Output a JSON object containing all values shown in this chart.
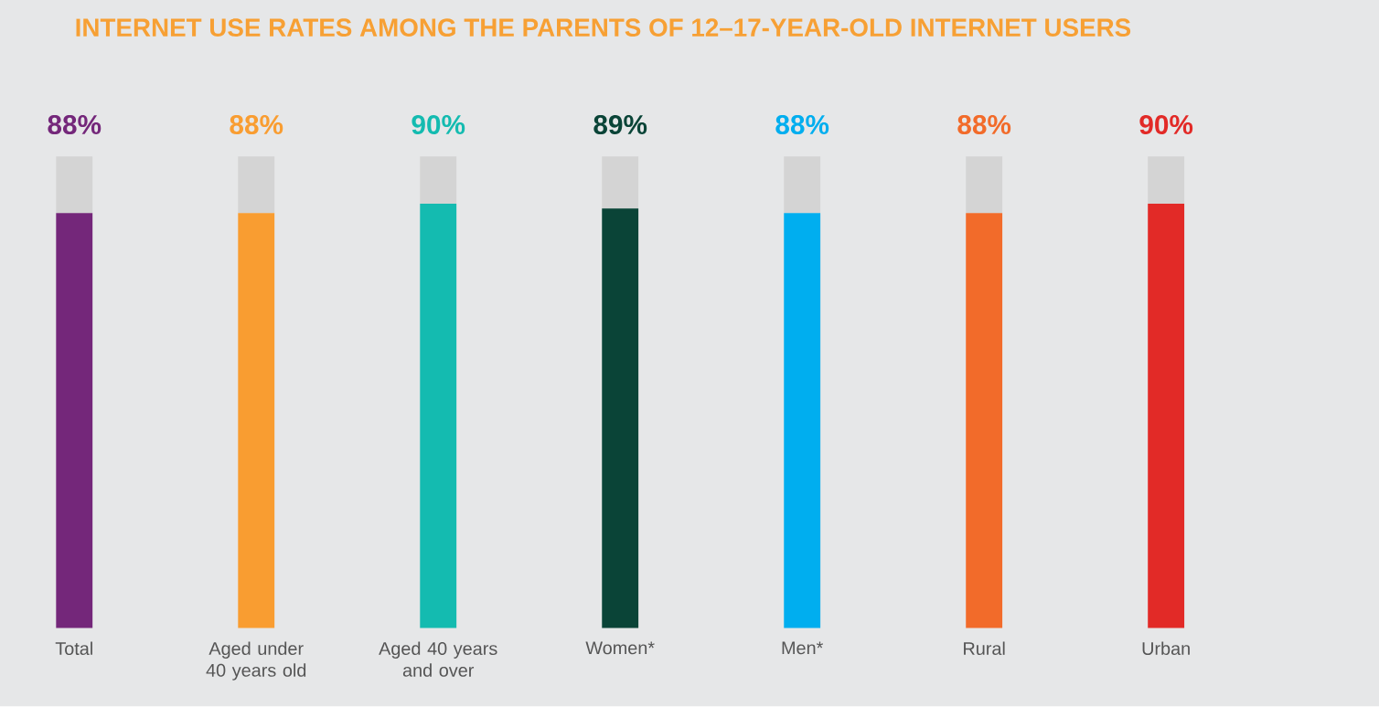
{
  "chart_data": {
    "type": "bar",
    "title": "INTERNET USE RATES AMONG THE PARENTS OF 12–17-YEAR-OLD INTERNET USERS",
    "categories": [
      "Total",
      "Aged under 40 years old",
      "Aged 40 years and over",
      "Women*",
      "Men*",
      "Rural",
      "Urban"
    ],
    "stacked": true,
    "tick_labels": "x",
    "series": [
      {
        "colors": [
          "#74277a",
          "#f99d31",
          "#14bbb0",
          "#0a4437",
          "#00aeef",
          "#f26b2a",
          "#e22a27"
        ],
        "values": [
          88,
          88,
          90,
          89,
          88,
          88,
          90
        ],
        "value_labels": [
          "88%",
          "88%",
          "90%",
          "89%",
          "88%",
          "88%",
          "90%"
        ]
      },
      {
        "color": "#d4d4d4",
        "values": [
          12,
          12,
          10,
          11,
          12,
          12,
          10
        ]
      }
    ]
  }
}
